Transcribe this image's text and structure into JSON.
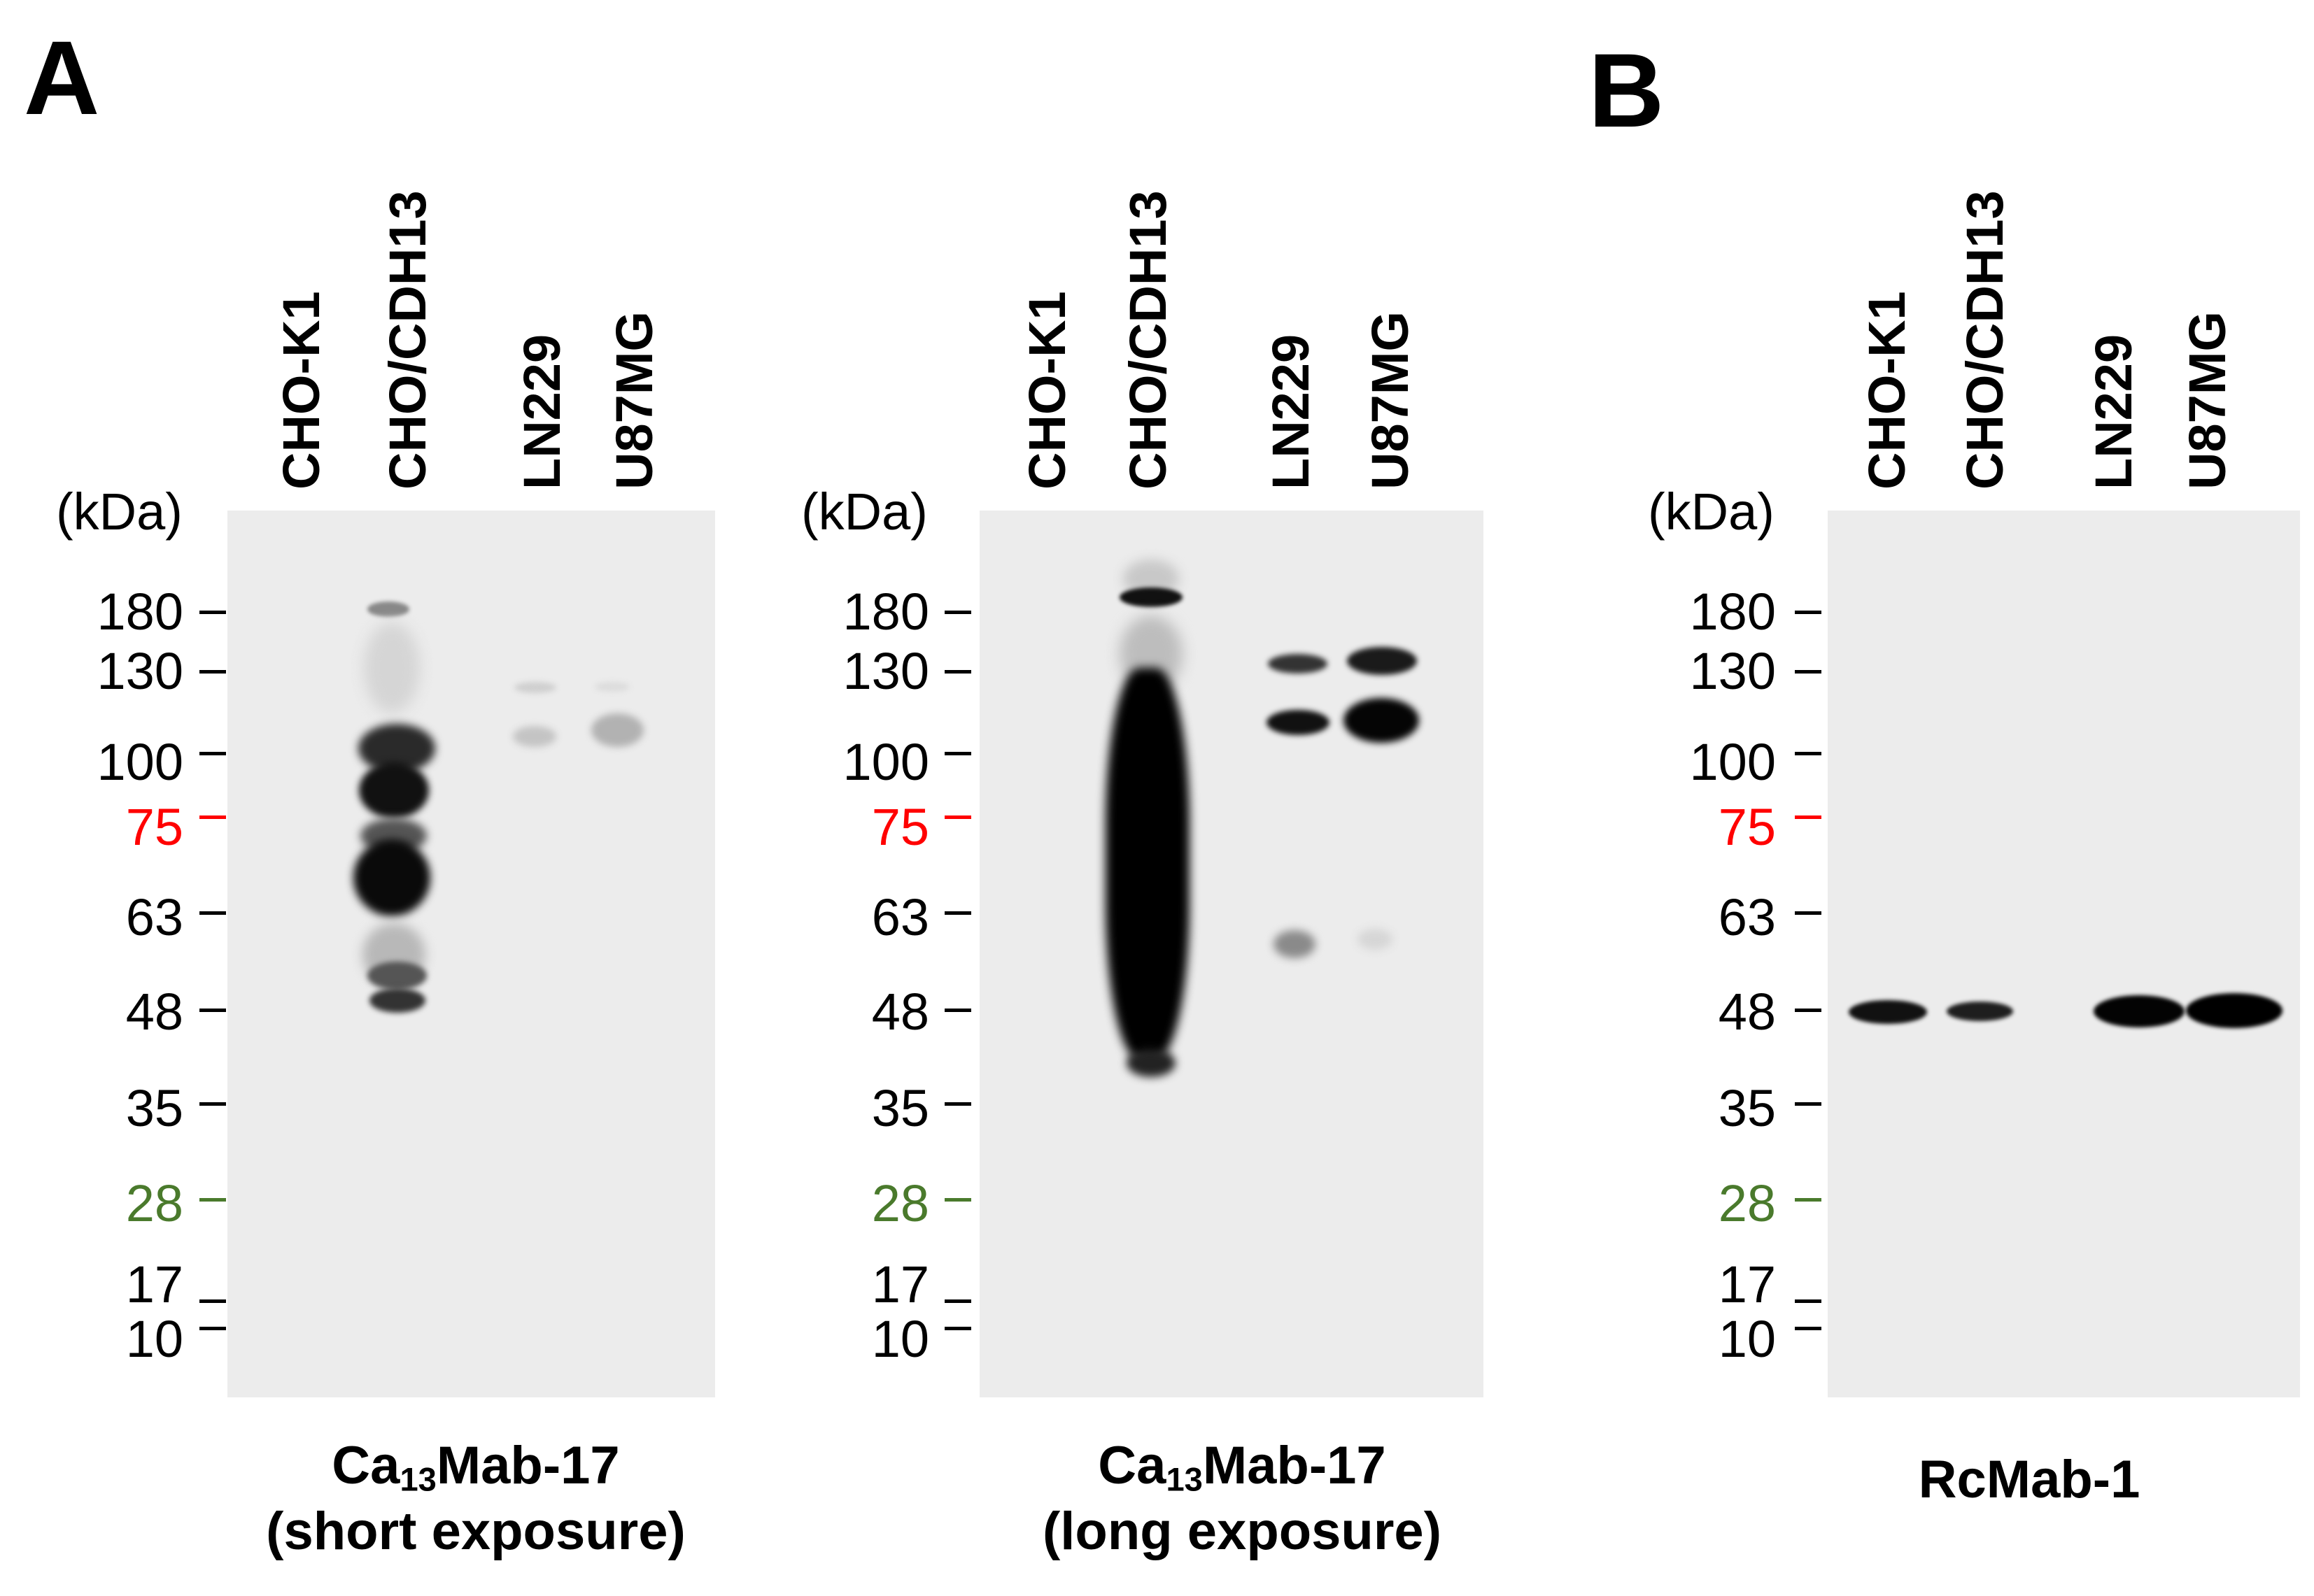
{
  "panels": [
    {
      "letter": "A",
      "lanes": [
        "CHO-K1",
        "CHO/CDH13",
        "LN229",
        "U87MG"
      ],
      "kda": "(kDa)",
      "markers": [
        "180",
        "130",
        "100",
        "75",
        "63",
        "48",
        "35",
        "28",
        "17",
        "10"
      ],
      "caption": {
        "pre": "Ca",
        "sub": "13",
        "post": "Mab-17",
        "line2": "(short exposure)"
      }
    },
    {
      "letter": "",
      "lanes": [
        "CHO-K1",
        "CHO/CDH13",
        "LN229",
        "U87MG"
      ],
      "kda": "(kDa)",
      "markers": [
        "180",
        "130",
        "100",
        "75",
        "63",
        "48",
        "35",
        "28",
        "17",
        "10"
      ],
      "caption": {
        "pre": "Ca",
        "sub": "13",
        "post": "Mab-17",
        "line2": "(long exposure)"
      }
    },
    {
      "letter": "B",
      "lanes": [
        "CHO-K1",
        "CHO/CDH13",
        "LN229",
        "U87MG"
      ],
      "kda": "(kDa)",
      "markers": [
        "180",
        "130",
        "100",
        "75",
        "63",
        "48",
        "35",
        "28",
        "17",
        "10"
      ],
      "caption": {
        "pre": "RcMab-1",
        "sub": "",
        "post": "",
        "line2": ""
      }
    }
  ],
  "colors": {
    "marker_75": "#ff0000",
    "marker_28": "#4a7a2c",
    "blot_bg": "#ececec"
  }
}
